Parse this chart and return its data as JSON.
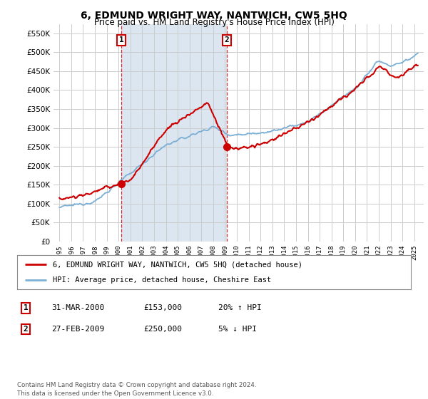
{
  "title": "6, EDMUND WRIGHT WAY, NANTWICH, CW5 5HQ",
  "subtitle": "Price paid vs. HM Land Registry's House Price Index (HPI)",
  "background_color": "#ffffff",
  "plot_bg_color": "#ffffff",
  "shade_color": "#dce6f1",
  "grid_color": "#cccccc",
  "hpi_color": "#7bafd4",
  "price_color": "#cc0000",
  "ylim": [
    0,
    575000
  ],
  "yticks": [
    0,
    50000,
    100000,
    150000,
    200000,
    250000,
    300000,
    350000,
    400000,
    450000,
    500000,
    550000
  ],
  "sale1_year": 2000.25,
  "sale1_price": 153000,
  "sale2_year": 2009.15,
  "sale2_price": 250000,
  "sale1_label": "1",
  "sale2_label": "2",
  "legend_line1": "6, EDMUND WRIGHT WAY, NANTWICH, CW5 5HQ (detached house)",
  "legend_line2": "HPI: Average price, detached house, Cheshire East",
  "table_row1": [
    "1",
    "31-MAR-2000",
    "£153,000",
    "20% ↑ HPI"
  ],
  "table_row2": [
    "2",
    "27-FEB-2009",
    "£250,000",
    "5% ↓ HPI"
  ],
  "footer": "Contains HM Land Registry data © Crown copyright and database right 2024.\nThis data is licensed under the Open Government Licence v3.0."
}
